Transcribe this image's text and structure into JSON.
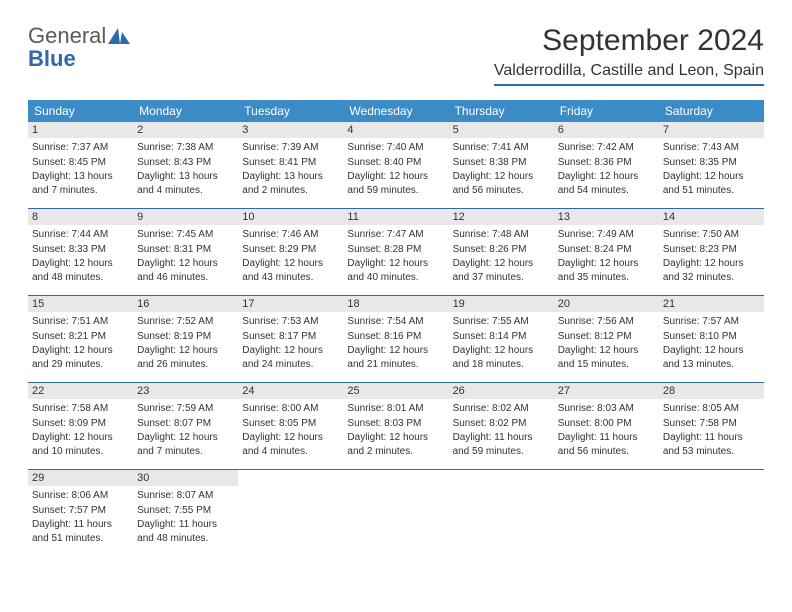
{
  "logo": {
    "text_general": "General",
    "text_blue": "Blue",
    "icon_color": "#2f6aa8"
  },
  "header": {
    "month_title": "September 2024",
    "location": "Valderrodilla, Castille and Leon, Spain"
  },
  "colors": {
    "header_bg": "#3b8bc7",
    "accent": "#2f6aa8",
    "daynum_bg": "#e8e8e8",
    "text": "#333333"
  },
  "day_names": [
    "Sunday",
    "Monday",
    "Tuesday",
    "Wednesday",
    "Thursday",
    "Friday",
    "Saturday"
  ],
  "days": [
    {
      "num": "1",
      "sunrise": "Sunrise: 7:37 AM",
      "sunset": "Sunset: 8:45 PM",
      "daylight": "Daylight: 13 hours and 7 minutes."
    },
    {
      "num": "2",
      "sunrise": "Sunrise: 7:38 AM",
      "sunset": "Sunset: 8:43 PM",
      "daylight": "Daylight: 13 hours and 4 minutes."
    },
    {
      "num": "3",
      "sunrise": "Sunrise: 7:39 AM",
      "sunset": "Sunset: 8:41 PM",
      "daylight": "Daylight: 13 hours and 2 minutes."
    },
    {
      "num": "4",
      "sunrise": "Sunrise: 7:40 AM",
      "sunset": "Sunset: 8:40 PM",
      "daylight": "Daylight: 12 hours and 59 minutes."
    },
    {
      "num": "5",
      "sunrise": "Sunrise: 7:41 AM",
      "sunset": "Sunset: 8:38 PM",
      "daylight": "Daylight: 12 hours and 56 minutes."
    },
    {
      "num": "6",
      "sunrise": "Sunrise: 7:42 AM",
      "sunset": "Sunset: 8:36 PM",
      "daylight": "Daylight: 12 hours and 54 minutes."
    },
    {
      "num": "7",
      "sunrise": "Sunrise: 7:43 AM",
      "sunset": "Sunset: 8:35 PM",
      "daylight": "Daylight: 12 hours and 51 minutes."
    },
    {
      "num": "8",
      "sunrise": "Sunrise: 7:44 AM",
      "sunset": "Sunset: 8:33 PM",
      "daylight": "Daylight: 12 hours and 48 minutes."
    },
    {
      "num": "9",
      "sunrise": "Sunrise: 7:45 AM",
      "sunset": "Sunset: 8:31 PM",
      "daylight": "Daylight: 12 hours and 46 minutes."
    },
    {
      "num": "10",
      "sunrise": "Sunrise: 7:46 AM",
      "sunset": "Sunset: 8:29 PM",
      "daylight": "Daylight: 12 hours and 43 minutes."
    },
    {
      "num": "11",
      "sunrise": "Sunrise: 7:47 AM",
      "sunset": "Sunset: 8:28 PM",
      "daylight": "Daylight: 12 hours and 40 minutes."
    },
    {
      "num": "12",
      "sunrise": "Sunrise: 7:48 AM",
      "sunset": "Sunset: 8:26 PM",
      "daylight": "Daylight: 12 hours and 37 minutes."
    },
    {
      "num": "13",
      "sunrise": "Sunrise: 7:49 AM",
      "sunset": "Sunset: 8:24 PM",
      "daylight": "Daylight: 12 hours and 35 minutes."
    },
    {
      "num": "14",
      "sunrise": "Sunrise: 7:50 AM",
      "sunset": "Sunset: 8:23 PM",
      "daylight": "Daylight: 12 hours and 32 minutes."
    },
    {
      "num": "15",
      "sunrise": "Sunrise: 7:51 AM",
      "sunset": "Sunset: 8:21 PM",
      "daylight": "Daylight: 12 hours and 29 minutes."
    },
    {
      "num": "16",
      "sunrise": "Sunrise: 7:52 AM",
      "sunset": "Sunset: 8:19 PM",
      "daylight": "Daylight: 12 hours and 26 minutes."
    },
    {
      "num": "17",
      "sunrise": "Sunrise: 7:53 AM",
      "sunset": "Sunset: 8:17 PM",
      "daylight": "Daylight: 12 hours and 24 minutes."
    },
    {
      "num": "18",
      "sunrise": "Sunrise: 7:54 AM",
      "sunset": "Sunset: 8:16 PM",
      "daylight": "Daylight: 12 hours and 21 minutes."
    },
    {
      "num": "19",
      "sunrise": "Sunrise: 7:55 AM",
      "sunset": "Sunset: 8:14 PM",
      "daylight": "Daylight: 12 hours and 18 minutes."
    },
    {
      "num": "20",
      "sunrise": "Sunrise: 7:56 AM",
      "sunset": "Sunset: 8:12 PM",
      "daylight": "Daylight: 12 hours and 15 minutes."
    },
    {
      "num": "21",
      "sunrise": "Sunrise: 7:57 AM",
      "sunset": "Sunset: 8:10 PM",
      "daylight": "Daylight: 12 hours and 13 minutes."
    },
    {
      "num": "22",
      "sunrise": "Sunrise: 7:58 AM",
      "sunset": "Sunset: 8:09 PM",
      "daylight": "Daylight: 12 hours and 10 minutes."
    },
    {
      "num": "23",
      "sunrise": "Sunrise: 7:59 AM",
      "sunset": "Sunset: 8:07 PM",
      "daylight": "Daylight: 12 hours and 7 minutes."
    },
    {
      "num": "24",
      "sunrise": "Sunrise: 8:00 AM",
      "sunset": "Sunset: 8:05 PM",
      "daylight": "Daylight: 12 hours and 4 minutes."
    },
    {
      "num": "25",
      "sunrise": "Sunrise: 8:01 AM",
      "sunset": "Sunset: 8:03 PM",
      "daylight": "Daylight: 12 hours and 2 minutes."
    },
    {
      "num": "26",
      "sunrise": "Sunrise: 8:02 AM",
      "sunset": "Sunset: 8:02 PM",
      "daylight": "Daylight: 11 hours and 59 minutes."
    },
    {
      "num": "27",
      "sunrise": "Sunrise: 8:03 AM",
      "sunset": "Sunset: 8:00 PM",
      "daylight": "Daylight: 11 hours and 56 minutes."
    },
    {
      "num": "28",
      "sunrise": "Sunrise: 8:05 AM",
      "sunset": "Sunset: 7:58 PM",
      "daylight": "Daylight: 11 hours and 53 minutes."
    },
    {
      "num": "29",
      "sunrise": "Sunrise: 8:06 AM",
      "sunset": "Sunset: 7:57 PM",
      "daylight": "Daylight: 11 hours and 51 minutes."
    },
    {
      "num": "30",
      "sunrise": "Sunrise: 8:07 AM",
      "sunset": "Sunset: 7:55 PM",
      "daylight": "Daylight: 11 hours and 48 minutes."
    }
  ]
}
